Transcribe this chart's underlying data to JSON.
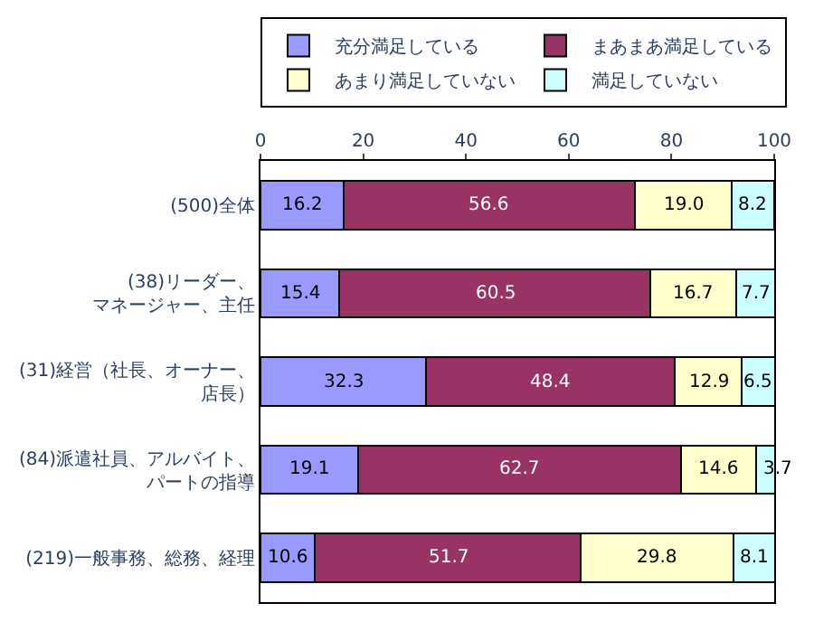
{
  "chart_data": {
    "type": "bar",
    "orientation": "horizontal",
    "stacked": true,
    "categories": [
      "(500)全体",
      "(38)リーダー、マネージャー、主任",
      "(31)経営（社長、オーナー、店長）",
      "(84)派遣社員、アルバイト、パートの指導",
      "(219)一般事務、総務、経理"
    ],
    "series": [
      {
        "name": "充分満足している",
        "color": "#9999ff",
        "values": [
          16.2,
          15.4,
          32.3,
          19.1,
          10.6
        ],
        "value_labels": [
          "16.2",
          "15.4",
          "32.3",
          "19.1",
          "10.6"
        ]
      },
      {
        "name": "まあまあ満足している",
        "color": "#993366",
        "values": [
          56.6,
          60.5,
          48.4,
          62.7,
          51.7
        ],
        "value_labels": [
          "56.6",
          "60.5",
          "48.4",
          "62.7",
          "51.7"
        ]
      },
      {
        "name": "あまり満足していない",
        "color": "#ffffcc",
        "values": [
          19.0,
          16.7,
          12.9,
          14.6,
          29.8
        ],
        "value_labels": [
          "19.0",
          "16.7",
          "12.9",
          "14.6",
          "29.8"
        ]
      },
      {
        "name": "満足していない",
        "color": "#ccffff",
        "values": [
          8.2,
          7.7,
          6.5,
          3.7,
          8.1
        ],
        "value_labels": [
          "8.2",
          "7.7",
          "6.5",
          "3.7",
          "8.1"
        ]
      }
    ],
    "xlim": [
      0,
      100
    ],
    "xticks": [
      0,
      20,
      40,
      60,
      80,
      100
    ],
    "grid": false,
    "legend": "top"
  }
}
